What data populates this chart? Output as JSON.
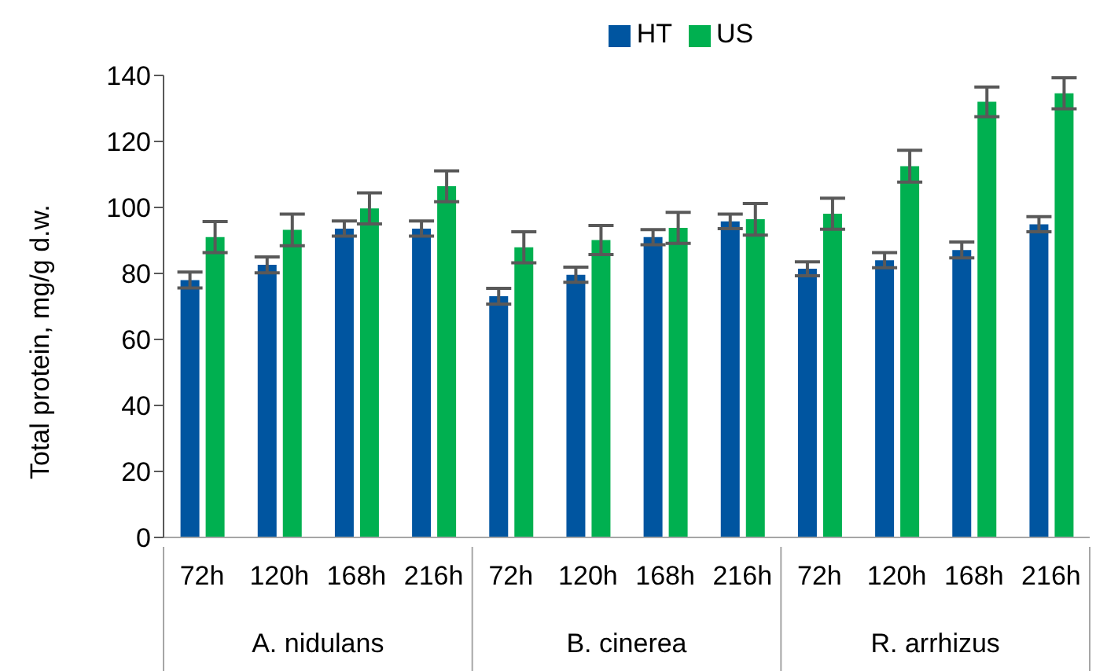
{
  "chart_data": {
    "type": "bar",
    "ylabel": "Total protein, mg/g d.w.",
    "categories": [
      "72h",
      "120h",
      "168h",
      "216h",
      "72h",
      "120h",
      "168h",
      "216h",
      "72h",
      "120h",
      "168h",
      "216h"
    ],
    "series": [
      {
        "name": "HT",
        "color": "#0055a0",
        "values": [
          78,
          82.6,
          93.6,
          93.6,
          73.1,
          79.6,
          91,
          95.8,
          81.4,
          84,
          87.1,
          94.9
        ],
        "errors": [
          2.4,
          2.4,
          2.3,
          2.3,
          2.4,
          2.3,
          2.3,
          2.2,
          2.1,
          2.3,
          2.4,
          2.3
        ]
      },
      {
        "name": "US",
        "color": "#00b050",
        "values": [
          91,
          93.2,
          99.7,
          106.4,
          87.9,
          90.1,
          93.8,
          96.4,
          98.1,
          112.5,
          132,
          134.6
        ],
        "errors": [
          4.7,
          4.8,
          4.7,
          4.7,
          4.7,
          4.4,
          4.7,
          4.8,
          4.7,
          4.8,
          4.5,
          4.7
        ]
      }
    ],
    "ylim": [
      0,
      140
    ],
    "yticks": [
      0,
      20,
      40,
      60,
      80,
      100,
      120,
      140
    ],
    "annotations": [
      "A. nidulans",
      "B. cinerea",
      "R. arrhizus"
    ],
    "legend": "top",
    "grid": false
  }
}
